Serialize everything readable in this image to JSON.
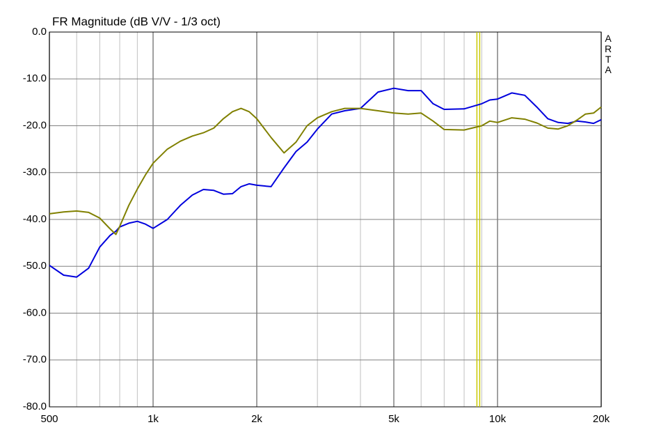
{
  "chart_data": {
    "type": "line",
    "title": "FR Magnitude (dB V/V - 1/3 oct)",
    "side_label": "ARTA",
    "x": [
      500,
      550,
      600,
      650,
      700,
      750,
      780,
      800,
      850,
      900,
      950,
      1000,
      1100,
      1200,
      1300,
      1400,
      1500,
      1600,
      1700,
      1800,
      1900,
      2000,
      2200,
      2400,
      2600,
      2800,
      3000,
      3300,
      3600,
      4000,
      4500,
      5000,
      5500,
      6000,
      6500,
      7000,
      8000,
      9000,
      9500,
      10000,
      11000,
      12000,
      13000,
      14000,
      15000,
      16000,
      17000,
      18000,
      19000,
      20000
    ],
    "series": [
      {
        "color": "#0000dd",
        "values": [
          -49.8,
          -51.9,
          -52.3,
          -50.4,
          -45.9,
          -43.4,
          -42.5,
          -41.6,
          -40.8,
          -40.4,
          -41,
          -41.9,
          -40,
          -37,
          -34.8,
          -33.6,
          -33.8,
          -34.6,
          -34.5,
          -33,
          -32.4,
          -32.7,
          -33,
          -29,
          -25.5,
          -23.5,
          -20.7,
          -17.5,
          -16.8,
          -16.3,
          -12.8,
          -12,
          -12.5,
          -12.5,
          -15.3,
          -16.5,
          -16.4,
          -15.3,
          -14.5,
          -14.3,
          -13,
          -13.5,
          -16,
          -18.5,
          -19.3,
          -19.5,
          -19,
          -19.2,
          -19.5,
          -18.7
        ]
      },
      {
        "color": "#808000",
        "values": [
          -38.8,
          -38.4,
          -38.2,
          -38.5,
          -39.7,
          -42,
          -43.2,
          -41.5,
          -37,
          -33.5,
          -30.5,
          -28,
          -25,
          -23.3,
          -22.2,
          -21.5,
          -20.5,
          -18.5,
          -17,
          -16.3,
          -17,
          -18.5,
          -22.5,
          -25.8,
          -23.5,
          -20,
          -18.3,
          -17,
          -16.3,
          -16.3,
          -16.8,
          -17.3,
          -17.5,
          -17.3,
          -19,
          -20.8,
          -20.9,
          -20,
          -19,
          -19.3,
          -18.3,
          -18.6,
          -19.4,
          -20.5,
          -20.7,
          -20,
          -18.8,
          -17.5,
          -17.3,
          -16
        ]
      }
    ],
    "xscale": "log",
    "xlim": [
      500,
      20000
    ],
    "xticks": [
      500,
      {
        "value": 1000,
        "label": "1k"
      },
      {
        "value": 2000,
        "label": "2k"
      },
      {
        "value": 5000,
        "label": "5k"
      },
      {
        "value": 10000,
        "label": "10k"
      },
      {
        "value": 20000,
        "label": "20k"
      }
    ],
    "xminor": [
      600,
      700,
      800,
      900,
      3000,
      4000,
      6000,
      7000,
      8000,
      9000
    ],
    "ylim": [
      -80,
      0
    ],
    "yticks": [
      {
        "value": -80,
        "label": "-80.0"
      },
      {
        "value": -70,
        "label": "-70.0"
      },
      {
        "value": -60,
        "label": "-60.0"
      },
      {
        "value": -50,
        "label": "-50.0"
      },
      {
        "value": -40,
        "label": "-40.0"
      },
      {
        "value": -30,
        "label": "-30.0"
      },
      {
        "value": -20,
        "label": "-20.0"
      },
      {
        "value": -10,
        "label": "-10.0"
      },
      {
        "value": 0,
        "label": "0.0"
      }
    ],
    "cursor": 8795,
    "cursor_color": "#c8c800",
    "grid": true
  }
}
